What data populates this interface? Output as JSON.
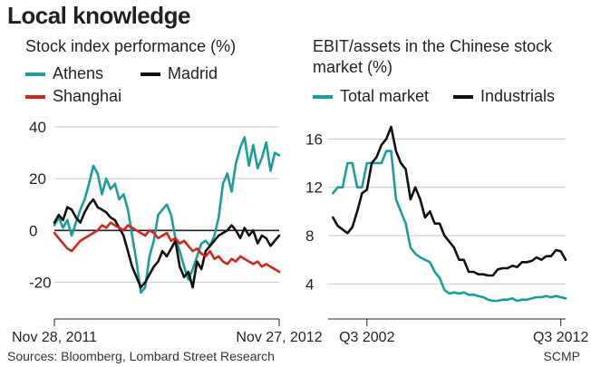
{
  "title": "Local knowledge",
  "source": "Sources: Bloomberg, Lombard Street Research",
  "credit": "SCMP",
  "chart_data": [
    {
      "type": "line",
      "title": "Stock index performance (%)",
      "xlabel": "",
      "ylabel": "",
      "x_tick_labels": [
        "Nov 28, 2011",
        "Nov 27, 2012"
      ],
      "x_ticks_at": [
        0,
        52
      ],
      "y_ticks": [
        -20,
        0,
        20,
        40
      ],
      "ylim": [
        -30,
        40
      ],
      "xlim": [
        0,
        52
      ],
      "grid": true,
      "legend": "top",
      "series": [
        {
          "name": "Athens",
          "color": "#1a9e9a",
          "x": [
            0,
            1,
            2,
            3,
            4,
            5,
            6,
            7,
            8,
            9,
            10,
            11,
            12,
            13,
            14,
            15,
            16,
            17,
            18,
            19,
            20,
            21,
            22,
            23,
            24,
            25,
            26,
            27,
            28,
            29,
            30,
            31,
            32,
            33,
            34,
            35,
            36,
            37,
            38,
            39,
            40,
            41,
            42,
            43,
            44,
            45,
            46,
            47,
            48,
            49,
            50,
            51,
            52
          ],
          "values": [
            2,
            5,
            1,
            4,
            -2,
            3,
            8,
            12,
            18,
            25,
            22,
            14,
            20,
            16,
            18,
            12,
            14,
            8,
            -2,
            -12,
            -24,
            -22,
            -10,
            -4,
            6,
            8,
            10,
            6,
            -3,
            -8,
            -14,
            -19,
            -15,
            -10,
            -5,
            -4,
            -6,
            -2,
            5,
            18,
            22,
            15,
            26,
            32,
            36,
            25,
            33,
            24,
            28,
            34,
            23,
            30,
            29
          ]
        },
        {
          "name": "Madrid",
          "color": "#111111",
          "x": [
            0,
            1,
            2,
            3,
            4,
            5,
            6,
            7,
            8,
            9,
            10,
            11,
            12,
            13,
            14,
            15,
            16,
            17,
            18,
            19,
            20,
            21,
            22,
            23,
            24,
            25,
            26,
            27,
            28,
            29,
            30,
            31,
            32,
            33,
            34,
            35,
            36,
            37,
            38,
            39,
            40,
            41,
            42,
            43,
            44,
            45,
            46,
            47,
            48,
            49,
            50,
            51,
            52
          ],
          "values": [
            3,
            6,
            4,
            9,
            8,
            5,
            3,
            7,
            10,
            12,
            9,
            8,
            7,
            5,
            4,
            1,
            -2,
            -8,
            -14,
            -18,
            -22,
            -20,
            -17,
            -14,
            -12,
            -8,
            -10,
            -7,
            -4,
            -14,
            -18,
            -16,
            -22,
            -12,
            -15,
            -8,
            -6,
            -4,
            -2,
            -1,
            0,
            2,
            0,
            -3,
            1,
            -2,
            0,
            -5,
            -2,
            -3,
            -6,
            -4,
            -2
          ]
        },
        {
          "name": "Shanghai",
          "color": "#d6241a",
          "x": [
            0,
            1,
            2,
            3,
            4,
            5,
            6,
            7,
            8,
            9,
            10,
            11,
            12,
            13,
            14,
            15,
            16,
            17,
            18,
            19,
            20,
            21,
            22,
            23,
            24,
            25,
            26,
            27,
            28,
            29,
            30,
            31,
            32,
            33,
            34,
            35,
            36,
            37,
            38,
            39,
            40,
            41,
            42,
            43,
            44,
            45,
            46,
            47,
            48,
            49,
            50,
            51,
            52
          ],
          "values": [
            -1,
            -3,
            -5,
            -7,
            -8,
            -6,
            -4,
            -3,
            -2,
            -1,
            0,
            2,
            1,
            3,
            2,
            1,
            0,
            2,
            1,
            0,
            -1,
            -2,
            0,
            -1,
            -3,
            -2,
            -1,
            -4,
            -3,
            -5,
            -4,
            -6,
            -8,
            -7,
            -9,
            -10,
            -8,
            -11,
            -10,
            -12,
            -13,
            -11,
            -12,
            -10,
            -11,
            -12,
            -13,
            -12,
            -14,
            -13,
            -14,
            -15,
            -16
          ]
        }
      ]
    },
    {
      "type": "line",
      "title": "EBIT/assets in the Chinese stock market (%)",
      "xlabel": "",
      "ylabel": "",
      "x_tick_labels": [
        "Q3 2002",
        "Q3 2012"
      ],
      "x_ticks_at": [
        2002.5,
        2012.5
      ],
      "y_ticks": [
        4,
        8,
        12,
        16
      ],
      "ylim": [
        2,
        17
      ],
      "xlim": [
        2000.5,
        2012.75
      ],
      "grid": true,
      "legend": "top",
      "series": [
        {
          "name": "Total market",
          "color": "#1a9e9a",
          "x": [
            2000.75,
            2001,
            2001.25,
            2001.5,
            2001.75,
            2002,
            2002.25,
            2002.5,
            2002.75,
            2003,
            2003.25,
            2003.5,
            2003.75,
            2004,
            2004.25,
            2004.5,
            2004.75,
            2005,
            2005.25,
            2005.5,
            2005.75,
            2006,
            2006.25,
            2006.5,
            2006.75,
            2007,
            2007.25,
            2007.5,
            2007.75,
            2008,
            2008.25,
            2008.5,
            2008.75,
            2009,
            2009.25,
            2009.5,
            2009.75,
            2010,
            2010.25,
            2010.5,
            2010.75,
            2011,
            2011.25,
            2011.5,
            2011.75,
            2012,
            2012.25,
            2012.5,
            2012.75
          ],
          "values": [
            11.5,
            12,
            12,
            14,
            14,
            12,
            12,
            14,
            14,
            14,
            14,
            15,
            15,
            11,
            10,
            9,
            7,
            6.5,
            6.2,
            6,
            5.8,
            5,
            4.5,
            3.5,
            3.2,
            3.3,
            3.2,
            3.3,
            3.1,
            3.1,
            3,
            2.9,
            2.7,
            2.6,
            2.6,
            2.7,
            2.7,
            2.8,
            2.6,
            2.7,
            2.7,
            2.8,
            2.9,
            2.9,
            3,
            2.9,
            3,
            2.9,
            2.8
          ]
        },
        {
          "name": "Industrials",
          "color": "#111111",
          "x": [
            2000.75,
            2001,
            2001.25,
            2001.5,
            2001.75,
            2002,
            2002.25,
            2002.5,
            2002.75,
            2003,
            2003.25,
            2003.5,
            2003.75,
            2004,
            2004.25,
            2004.5,
            2004.75,
            2005,
            2005.25,
            2005.5,
            2005.75,
            2006,
            2006.25,
            2006.5,
            2006.75,
            2007,
            2007.25,
            2007.5,
            2007.75,
            2008,
            2008.25,
            2008.5,
            2008.75,
            2009,
            2009.25,
            2009.5,
            2009.75,
            2010,
            2010.25,
            2010.5,
            2010.75,
            2011,
            2011.25,
            2011.5,
            2011.75,
            2012,
            2012.25,
            2012.5,
            2012.75
          ],
          "values": [
            9.5,
            8.8,
            8.5,
            8.2,
            8.7,
            10,
            11.5,
            11.8,
            14,
            14.5,
            15.5,
            16,
            17,
            15,
            14,
            13.5,
            11,
            12,
            11,
            9.5,
            10,
            9,
            9,
            8,
            7.5,
            7,
            6,
            6,
            5,
            5,
            4.8,
            4.8,
            4.7,
            4.7,
            5.2,
            5.3,
            5.3,
            5.5,
            5.4,
            5.8,
            5.8,
            5.9,
            6.2,
            6,
            6.3,
            6.3,
            6.8,
            6.7,
            6
          ]
        }
      ]
    }
  ]
}
